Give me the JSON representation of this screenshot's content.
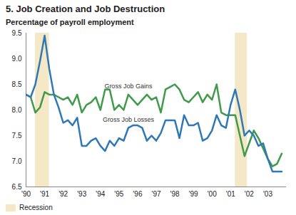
{
  "chart_data": {
    "type": "line",
    "title": "5. Job Creation and Job Destruction",
    "subtitle": "Percentage of payroll employment",
    "x": [
      1990,
      1990.25,
      1990.5,
      1990.75,
      1991,
      1991.25,
      1991.5,
      1991.75,
      1992,
      1992.25,
      1992.5,
      1992.75,
      1993,
      1993.25,
      1993.5,
      1993.75,
      1994,
      1994.25,
      1994.5,
      1994.75,
      1995,
      1995.25,
      1995.5,
      1995.75,
      1996,
      1996.25,
      1996.5,
      1996.75,
      1997,
      1997.25,
      1997.5,
      1997.75,
      1998,
      1998.25,
      1998.5,
      1998.75,
      1999,
      1999.25,
      1999.5,
      1999.75,
      2000,
      2000.25,
      2000.5,
      2000.75,
      2001,
      2001.25,
      2001.5,
      2001.75,
      2002,
      2002.25,
      2002.5,
      2002.75,
      2003,
      2003.25,
      2003.5,
      2003.75
    ],
    "series": [
      {
        "name": "Gross Job Gains",
        "color": "#3f9a4a",
        "values": [
          8.3,
          8.25,
          7.95,
          8.05,
          8.35,
          8.3,
          8.3,
          8.25,
          8.2,
          8.25,
          8.1,
          8.3,
          7.95,
          8.1,
          8.15,
          8.25,
          8.0,
          8.4,
          8.4,
          8.0,
          8.1,
          8.0,
          8.3,
          8.2,
          8.1,
          8.2,
          8.3,
          8.2,
          8.25,
          7.95,
          8.4,
          8.45,
          8.5,
          8.4,
          8.2,
          8.15,
          8.25,
          8.35,
          8.15,
          8.3,
          8.2,
          8.5,
          7.95,
          7.9,
          7.9,
          7.9,
          7.5,
          7.1,
          7.35,
          7.6,
          7.45,
          7.25,
          7.05,
          6.9,
          6.95,
          7.15
        ]
      },
      {
        "name": "Gross Job Losses",
        "color": "#2f78b7",
        "values": [
          8.3,
          8.25,
          8.5,
          8.95,
          9.45,
          8.8,
          8.3,
          8.05,
          7.75,
          7.8,
          7.7,
          7.85,
          7.3,
          7.3,
          7.4,
          7.45,
          7.3,
          7.2,
          7.4,
          7.3,
          7.45,
          7.4,
          7.65,
          7.7,
          7.7,
          7.65,
          7.4,
          7.5,
          7.4,
          7.55,
          7.8,
          7.8,
          7.8,
          7.45,
          7.9,
          7.7,
          7.7,
          7.75,
          7.4,
          7.45,
          7.6,
          7.9,
          7.7,
          7.65,
          8.1,
          8.4,
          8.0,
          7.5,
          7.6,
          7.5,
          7.3,
          7.35,
          7.05,
          6.8,
          6.8,
          6.8
        ]
      }
    ],
    "xlim": [
      1990,
      2004
    ],
    "xticks": [
      {
        "value": 1990,
        "label": "'90"
      },
      {
        "value": 1991,
        "label": "'91"
      },
      {
        "value": 1992,
        "label": "'92"
      },
      {
        "value": 1993,
        "label": "'93"
      },
      {
        "value": 1994,
        "label": "'94"
      },
      {
        "value": 1995,
        "label": "'95"
      },
      {
        "value": 1996,
        "label": "'96"
      },
      {
        "value": 1997,
        "label": "'97"
      },
      {
        "value": 1998,
        "label": "'98"
      },
      {
        "value": 1999,
        "label": "'99"
      },
      {
        "value": 2000,
        "label": "'00"
      },
      {
        "value": 2001,
        "label": "'01"
      },
      {
        "value": 2002,
        "label": "'02"
      },
      {
        "value": 2003,
        "label": "'03"
      }
    ],
    "ylim": [
      6.5,
      9.5
    ],
    "yticks": [
      6.5,
      {
        "value": 7,
        "label": "7.0"
      },
      7.5,
      {
        "value": 8,
        "label": "8.0"
      },
      8.5,
      {
        "value": 9,
        "label": "9.0"
      },
      9.5
    ],
    "shaded_regions": {
      "name": "Recession",
      "color": "#f4e8c6",
      "ranges": [
        [
          1990.5,
          1991.25
        ],
        [
          2001.25,
          2001.9
        ]
      ]
    },
    "grid": false
  }
}
